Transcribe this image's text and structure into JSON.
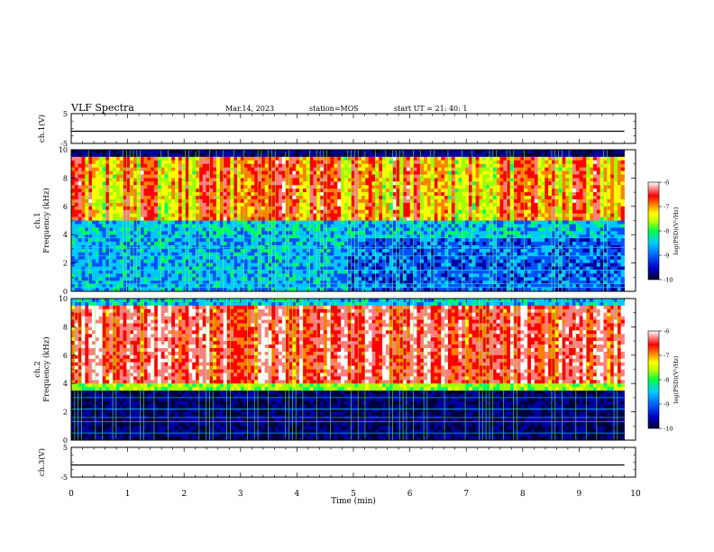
{
  "header": {
    "title": "VLF Spectra",
    "date": "Mar.14, 2023",
    "station": "station=MOS",
    "start_ut": "start  UT  =   21: 40: 1"
  },
  "colors": {
    "spectrogram_palette": [
      "#000018",
      "#00003a",
      "#0000a0",
      "#0050ff",
      "#00c8ff",
      "#00ff60",
      "#a0ff00",
      "#ffff00",
      "#ff8000",
      "#ff0000",
      "#ff8080",
      "#ffffff"
    ]
  },
  "chart_data": [
    {
      "type": "line",
      "panel": "ch1-voltage",
      "ylabel": "ch.1(V)",
      "ylim": [
        -5,
        5
      ],
      "y_ticks": [
        "5",
        "-5"
      ],
      "xlim": [
        0,
        10
      ],
      "series": [
        {
          "values_description_free": true,
          "x": [
            0,
            2.5,
            5,
            7.5,
            9.8
          ],
          "y": [
            -0.9,
            -0.9,
            -0.9,
            -0.9,
            -0.9
          ]
        }
      ]
    },
    {
      "type": "heatmap",
      "panel": "ch1-spectrogram",
      "ylabel": "ch.1\nFrequency (kHz)",
      "ylim": [
        0,
        10
      ],
      "y_ticks": [
        "0",
        "2",
        "4",
        "6",
        "8",
        "10"
      ],
      "xlim": [
        0,
        10
      ],
      "data_extent_x": [
        0,
        9.8
      ],
      "colorbar": {
        "label": "log(PSD)(V²/Hz)",
        "range": [
          -10,
          -6
        ],
        "ticks": [
          "-6",
          "-7",
          "-8",
          "-9",
          "-10"
        ]
      }
    },
    {
      "type": "heatmap",
      "panel": "ch2-spectrogram",
      "ylabel": "ch.2\nFrequency (kHz)",
      "ylim": [
        0,
        10
      ],
      "y_ticks": [
        "0",
        "2",
        "4",
        "6",
        "8",
        "10"
      ],
      "xlim": [
        0,
        10
      ],
      "data_extent_x": [
        0,
        9.8
      ],
      "colorbar": {
        "label": "log(PSD)(V²/Hz)",
        "range": [
          -10,
          -6
        ],
        "ticks": [
          "-6",
          "-7",
          "-8",
          "-9",
          "-10"
        ]
      }
    },
    {
      "type": "line",
      "panel": "ch3-voltage",
      "ylabel": "ch.3(V)",
      "ylim": [
        -5,
        5
      ],
      "y_ticks": [
        "5",
        "-5"
      ],
      "xlim": [
        0,
        10
      ],
      "xlabel": "Time  (min)",
      "x_ticks": [
        "0",
        "1",
        "2",
        "3",
        "4",
        "5",
        "6",
        "7",
        "8",
        "9",
        "10"
      ],
      "series": [
        {
          "x": [
            0,
            2.5,
            5,
            7.5,
            9.8
          ],
          "y": [
            -0.9,
            -0.9,
            -0.9,
            -0.9,
            -0.9
          ]
        }
      ]
    }
  ]
}
